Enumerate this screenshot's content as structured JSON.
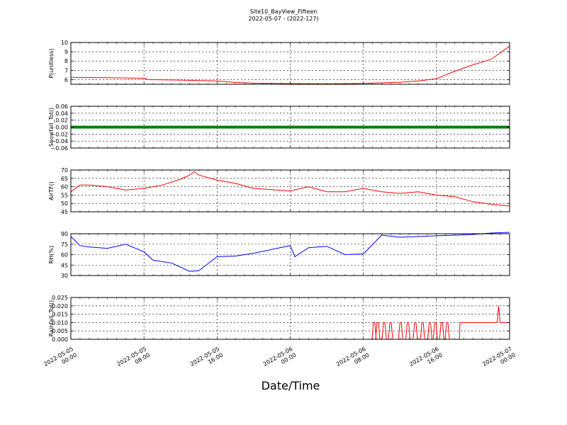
{
  "figure": {
    "title_line1": "Site10_BayView_Fifteen",
    "title_line2": "2022-05-07 - (2022-127)",
    "xlabel": "Date/Time"
  },
  "chart_data": [
    {
      "type": "line",
      "ylabel": "P(unitless)",
      "ylim": [
        5.5,
        10
      ],
      "yticks": [
        6,
        7,
        8,
        9,
        10
      ],
      "color": "#ff0000",
      "grid": true,
      "x_hours": [
        0,
        4,
        8,
        8.5,
        12,
        16,
        18,
        20,
        24,
        28,
        31,
        32,
        36,
        38,
        40,
        42,
        44,
        46,
        48
      ],
      "values": [
        6.25,
        6.2,
        6.15,
        6.0,
        5.95,
        5.85,
        5.7,
        5.62,
        5.58,
        5.55,
        5.58,
        5.6,
        5.72,
        5.85,
        6.1,
        6.9,
        7.6,
        8.2,
        9.6
      ]
    },
    {
      "type": "scatter",
      "ylabel": "Snowfall_Tot()",
      "ylim": [
        -0.06,
        0.06
      ],
      "yticks": [
        -0.06,
        -0.04,
        -0.02,
        0.0,
        0.02,
        0.04,
        0.06
      ],
      "tick_labels": [
        "−0.06",
        "−0.04",
        "−0.02",
        "0.00",
        "0.02",
        "0.04",
        "0.06"
      ],
      "color": "#007f00",
      "grid": true,
      "constant_value": 0.0
    },
    {
      "type": "line",
      "ylabel": "AirTF()",
      "ylim": [
        45,
        70
      ],
      "yticks": [
        45,
        50,
        55,
        60,
        65,
        70
      ],
      "color": "#ff0000",
      "grid": true,
      "x_hours": [
        0,
        1,
        2,
        4,
        6,
        8,
        10,
        12,
        13,
        13.5,
        14,
        16,
        18,
        20,
        24,
        26,
        28,
        30,
        32,
        34,
        36,
        38,
        40,
        42,
        44,
        46,
        48
      ],
      "values": [
        57,
        61,
        61,
        60,
        58,
        59,
        61,
        64.5,
        67,
        69,
        67,
        64,
        62,
        59,
        57.5,
        60,
        57,
        57,
        59,
        57,
        56,
        57,
        55,
        54,
        51,
        49.5,
        48.5
      ]
    },
    {
      "type": "line",
      "ylabel": "RH(%)",
      "ylim": [
        30,
        90
      ],
      "yticks": [
        30,
        45,
        60,
        75,
        90
      ],
      "color": "#0000ff",
      "grid": true,
      "x_hours": [
        0,
        1,
        2,
        4,
        6,
        8,
        9,
        11,
        12,
        13,
        14,
        16,
        18,
        20,
        24,
        24.5,
        26,
        28,
        30,
        32,
        34,
        36,
        38,
        40,
        42,
        44,
        46,
        48
      ],
      "values": [
        86,
        73,
        71,
        69,
        75,
        64,
        52,
        48,
        42,
        36,
        37,
        57,
        58,
        62,
        73,
        57,
        70,
        72,
        60,
        61,
        88,
        85,
        86,
        87,
        88,
        89,
        91,
        92
      ]
    },
    {
      "type": "line",
      "ylabel": "Rainfall_Tot()",
      "ylim": [
        0,
        0.025
      ],
      "yticks": [
        0.0,
        0.005,
        0.01,
        0.015,
        0.02,
        0.025
      ],
      "tick_labels": [
        "0.000",
        "0.005",
        "0.010",
        "0.015",
        "0.020",
        "0.025"
      ],
      "color": "#ff0000",
      "grid": true,
      "baseline": 0.0,
      "spikes_x_hours": [
        33.1,
        33.5,
        34.2,
        34.9,
        36.0,
        36.8,
        37.6,
        38.4,
        39.2,
        39.8,
        40.5,
        41.1
      ],
      "spike_value": 0.01,
      "plateau_start_hour": 42.5,
      "plateau_value": 0.01,
      "peak_x_hour": 46.8,
      "peak_value": 0.02
    }
  ],
  "x_axis": {
    "range_hours": [
      0,
      48
    ],
    "ticks": [
      {
        "hour": 0,
        "line1": "2022-05-05",
        "line2": "00:00"
      },
      {
        "hour": 8,
        "line1": "2022-05-05",
        "line2": "08:00"
      },
      {
        "hour": 16,
        "line1": "2022-05-05",
        "line2": "16:00"
      },
      {
        "hour": 24,
        "line1": "2022-05-06",
        "line2": "00:00"
      },
      {
        "hour": 32,
        "line1": "2022-05-06",
        "line2": "08:00"
      },
      {
        "hour": 40,
        "line1": "2022-05-06",
        "line2": "16:00"
      },
      {
        "hour": 48,
        "line1": "2022-05-07",
        "line2": "00:00"
      }
    ]
  }
}
